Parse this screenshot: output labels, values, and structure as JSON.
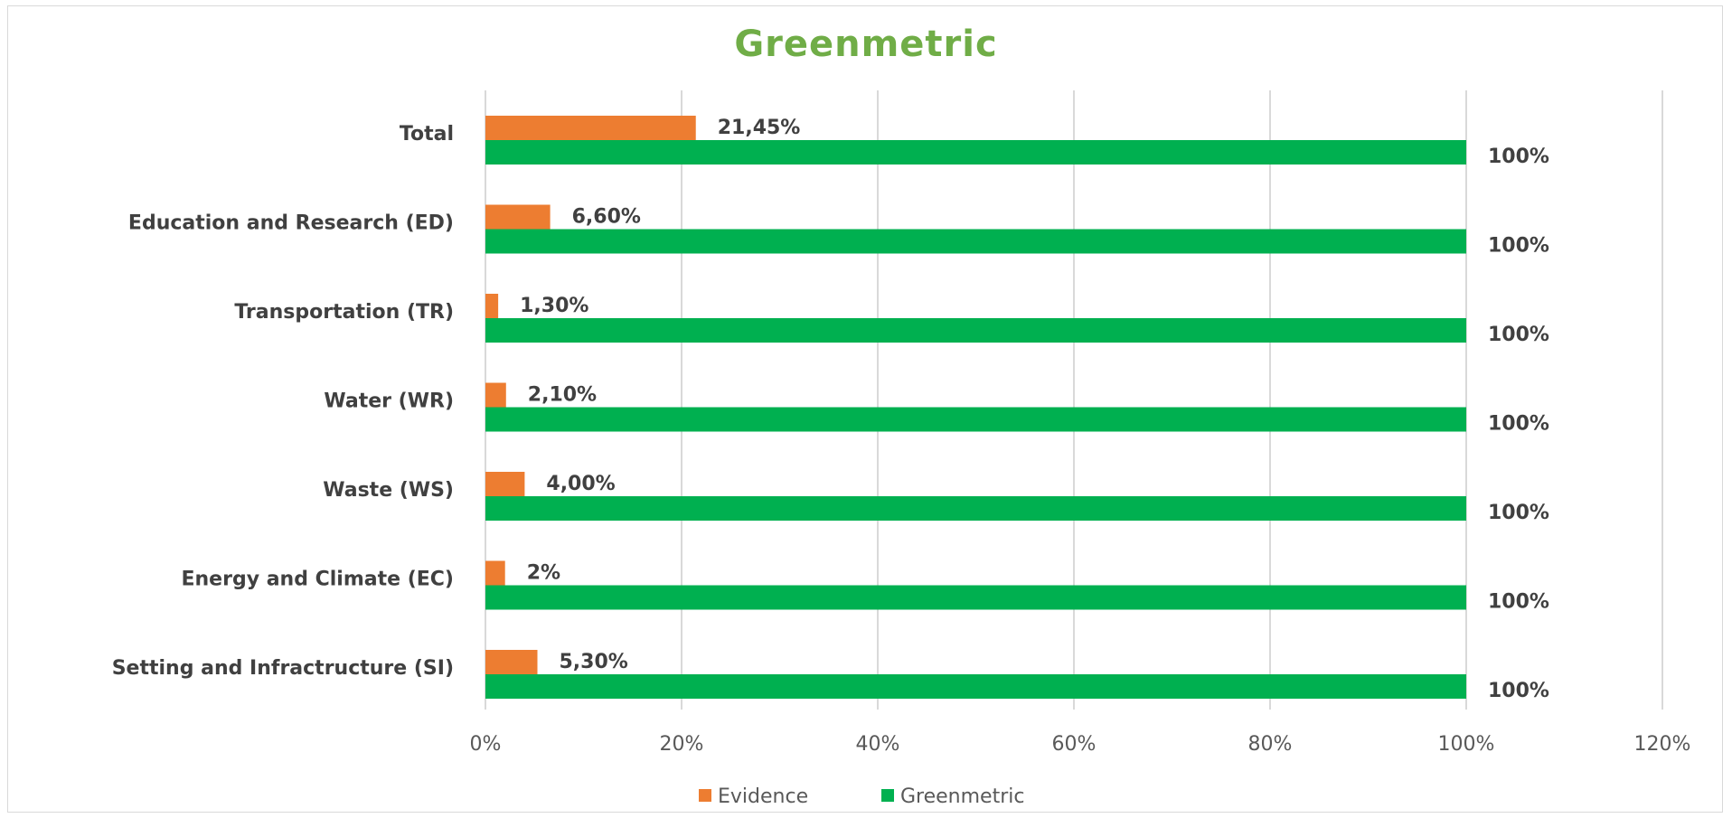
{
  "chart_data": {
    "type": "bar",
    "orientation": "horizontal",
    "title": "Greenmetric",
    "categories": [
      "Total",
      "Education and Research (ED)",
      "Transportation (TR)",
      "Water (WR)",
      "Waste (WS)",
      "Energy and Climate (EC)",
      "Setting and Infractructure (SI)"
    ],
    "series": [
      {
        "name": "Evidence",
        "color": "#ed7d31",
        "values": [
          21.45,
          6.6,
          1.3,
          2.1,
          4.0,
          2,
          5.3
        ],
        "labels": [
          "21,45%",
          "6,60%",
          "1,30%",
          "2,10%",
          "4,00%",
          "2%",
          "5,30%"
        ]
      },
      {
        "name": "Greenmetric",
        "color": "#00b050",
        "values": [
          100,
          100,
          100,
          100,
          100,
          100,
          100
        ],
        "labels": [
          "100%",
          "100%",
          "100%",
          "100%",
          "100%",
          "100%",
          "100%"
        ]
      }
    ],
    "xlim": [
      0,
      120
    ],
    "x_ticks": [
      "0%",
      "20%",
      "40%",
      "60%",
      "80%",
      "100%",
      "120%"
    ],
    "grid": true,
    "legend_position": "bottom"
  }
}
